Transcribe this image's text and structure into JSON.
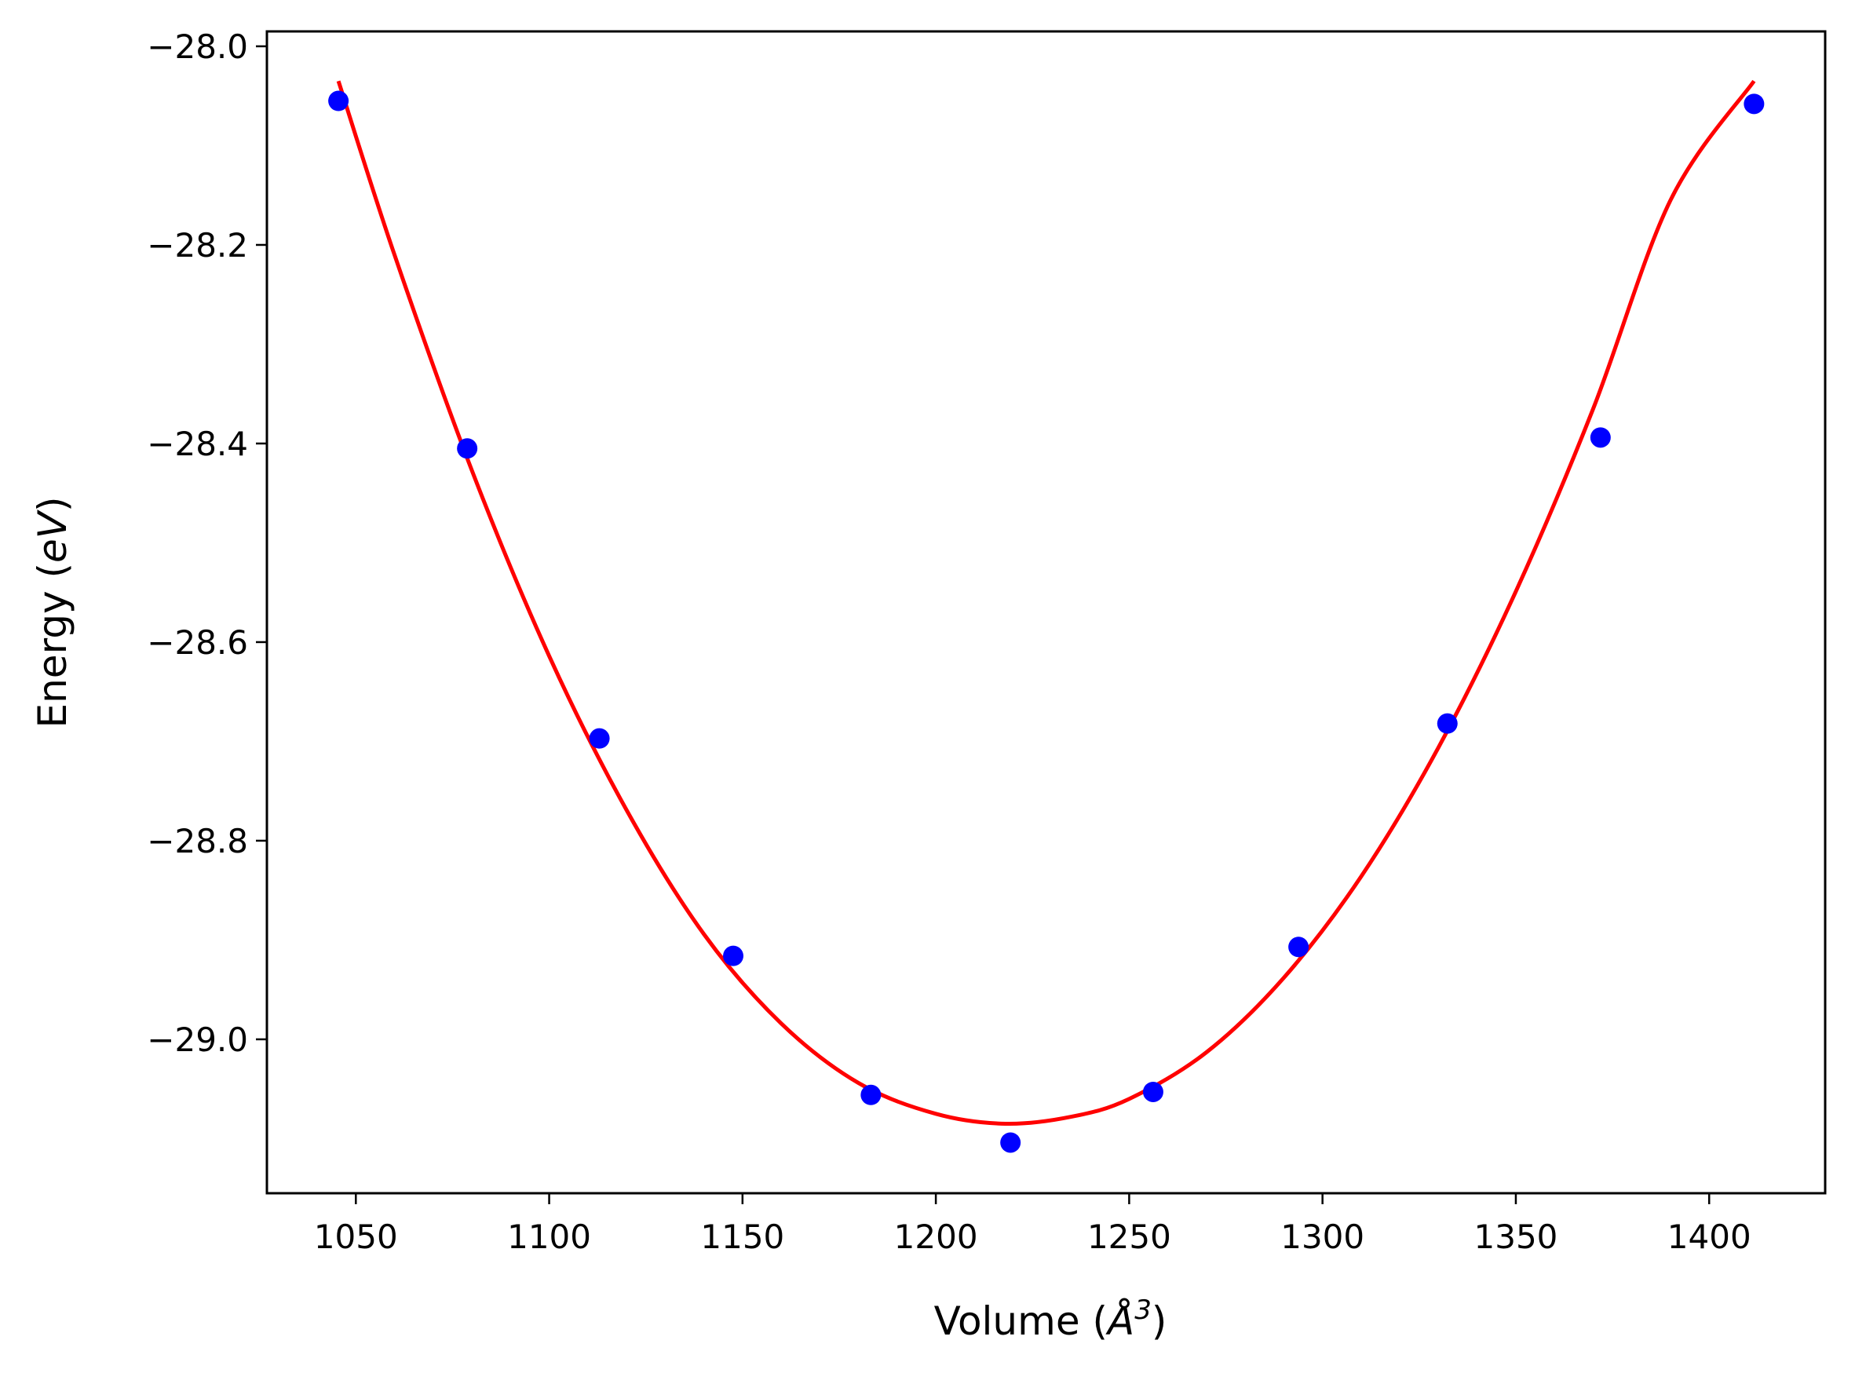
{
  "chart_data": {
    "type": "scatter",
    "title": "",
    "xlabel": "Volume (Å³)",
    "ylabel": "Energy (eV)",
    "xlabel_parts": {
      "before": "Volume (",
      "symbol": "Å",
      "superscript": "3",
      "after": ")"
    },
    "ylabel_parts": {
      "before": "Energy (",
      "italic": "eV",
      "after": ")"
    },
    "xlim": [
      1027,
      1430
    ],
    "ylim": [
      -29.155,
      -27.985
    ],
    "xticks": [
      1050,
      1100,
      1150,
      1200,
      1250,
      1300,
      1350,
      1400
    ],
    "xtick_labels": [
      "1050",
      "1100",
      "1150",
      "1200",
      "1250",
      "1300",
      "1350",
      "1400"
    ],
    "yticks": [
      -28.0,
      -28.2,
      -28.4,
      -28.6,
      -28.8,
      -29.0
    ],
    "ytick_labels": [
      "−28.0",
      "−28.2",
      "−28.4",
      "−28.6",
      "−28.8",
      "−29.0"
    ],
    "grid": false,
    "colors": {
      "points": "#0000ff",
      "fit": "#ff0000",
      "axes": "#000000"
    },
    "series": [
      {
        "kind": "points",
        "x": [
          1045.5,
          1078.8,
          1113.0,
          1147.6,
          1183.2,
          1219.3,
          1256.2,
          1293.8,
          1332.3,
          1371.9,
          1411.6
        ],
        "y": [
          -28.055,
          -28.405,
          -28.697,
          -28.916,
          -29.056,
          -29.104,
          -29.053,
          -28.907,
          -28.682,
          -28.394,
          -28.058
        ]
      },
      {
        "kind": "line",
        "x": [
          1045.5,
          1060,
          1080,
          1100,
          1120,
          1140,
          1160,
          1180,
          1200,
          1218,
          1235,
          1250,
          1270,
          1290,
          1310,
          1330,
          1350,
          1370,
          1390,
          1411.6
        ],
        "y": [
          -28.035,
          -28.21,
          -28.427,
          -28.614,
          -28.769,
          -28.894,
          -28.984,
          -29.044,
          -29.075,
          -29.085,
          -29.078,
          -29.06,
          -29.013,
          -28.938,
          -28.836,
          -28.706,
          -28.549,
          -28.365,
          -28.155,
          -28.035
        ]
      }
    ]
  }
}
